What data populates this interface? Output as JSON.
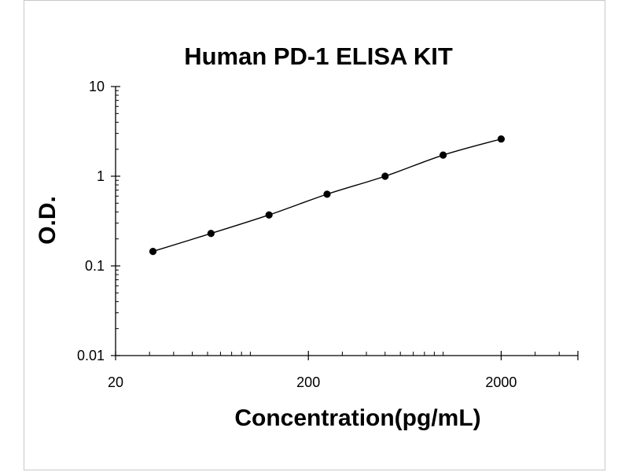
{
  "chart_data": {
    "type": "scatter",
    "title": "Human PD-1 ELISA KIT",
    "xlabel": "Concentration(pg/mL)",
    "ylabel": "O.D.",
    "xscale": "log",
    "yscale": "log",
    "xlim": [
      20,
      5000
    ],
    "ylim": [
      0.01,
      10
    ],
    "xticks": [
      "20",
      "200",
      "2000"
    ],
    "yticks": [
      "10",
      "1",
      "0.1",
      "0.01"
    ],
    "grid": false,
    "legend": "none",
    "fit_line": true,
    "series": [
      {
        "x": [
          31.25,
          62.5,
          125,
          250,
          500,
          1000,
          2000
        ],
        "y": [
          0.145,
          0.23,
          0.37,
          0.63,
          1.0,
          1.72,
          2.6
        ]
      }
    ],
    "colors": {
      "points": "#000000",
      "line": "#000000",
      "axis": "#000000"
    }
  }
}
